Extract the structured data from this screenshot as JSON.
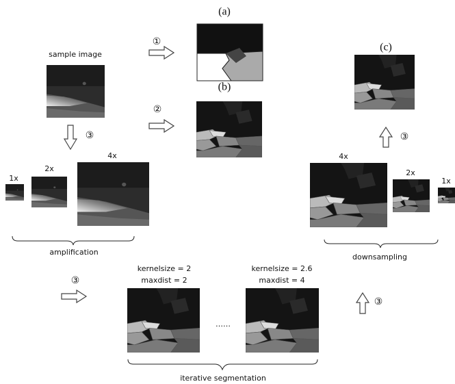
{
  "panels": {
    "a": "(a)",
    "b": "(b)",
    "c": "(c)"
  },
  "sample_image": "sample image",
  "steps": [
    "①",
    "②",
    "③",
    "③",
    "③",
    "③"
  ],
  "amplification": {
    "scales": [
      "1x",
      "2x",
      "4x"
    ],
    "label": "amplification"
  },
  "downsampling": {
    "scales": [
      "4x",
      "2x",
      "1x"
    ],
    "label": "downsampling"
  },
  "iterations": [
    {
      "kernelsize": "kernelsize = 2",
      "maxdist": "maxdist = 2"
    },
    {
      "kernelsize": "kernelsize = 2.6",
      "maxdist": "maxdist = 4"
    }
  ],
  "ellipsis": "……",
  "iterative_label": "iterative segmentation"
}
